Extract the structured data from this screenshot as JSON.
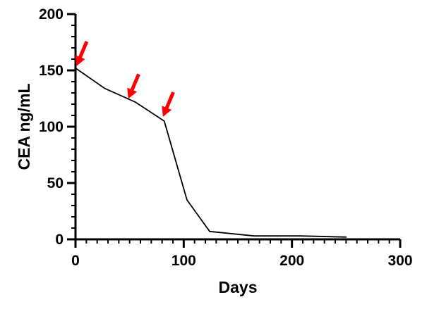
{
  "chart_data": {
    "type": "line",
    "xlabel": "Days",
    "ylabel": "CEA ng/mL",
    "xlim": [
      0,
      300
    ],
    "ylim": [
      0,
      200
    ],
    "x_ticks": [
      0,
      100,
      200,
      300
    ],
    "y_ticks": [
      0,
      50,
      100,
      150,
      200
    ],
    "x_minor_step": 10,
    "y_minor_step": 10,
    "grid": false,
    "series": [
      {
        "color": "#000000",
        "x": [
          0,
          27,
          55,
          82,
          103,
          124,
          165,
          208,
          250
        ],
        "y": [
          152,
          134,
          122,
          105,
          35,
          7,
          3,
          3,
          2
        ]
      }
    ],
    "annotations": [
      {
        "type": "arrow",
        "color": "#ff0000",
        "x": 0,
        "y": 152
      },
      {
        "type": "arrow",
        "color": "#ff0000",
        "x": 48,
        "y": 123
      },
      {
        "type": "arrow",
        "color": "#ff0000",
        "x": 80,
        "y": 107
      }
    ]
  }
}
